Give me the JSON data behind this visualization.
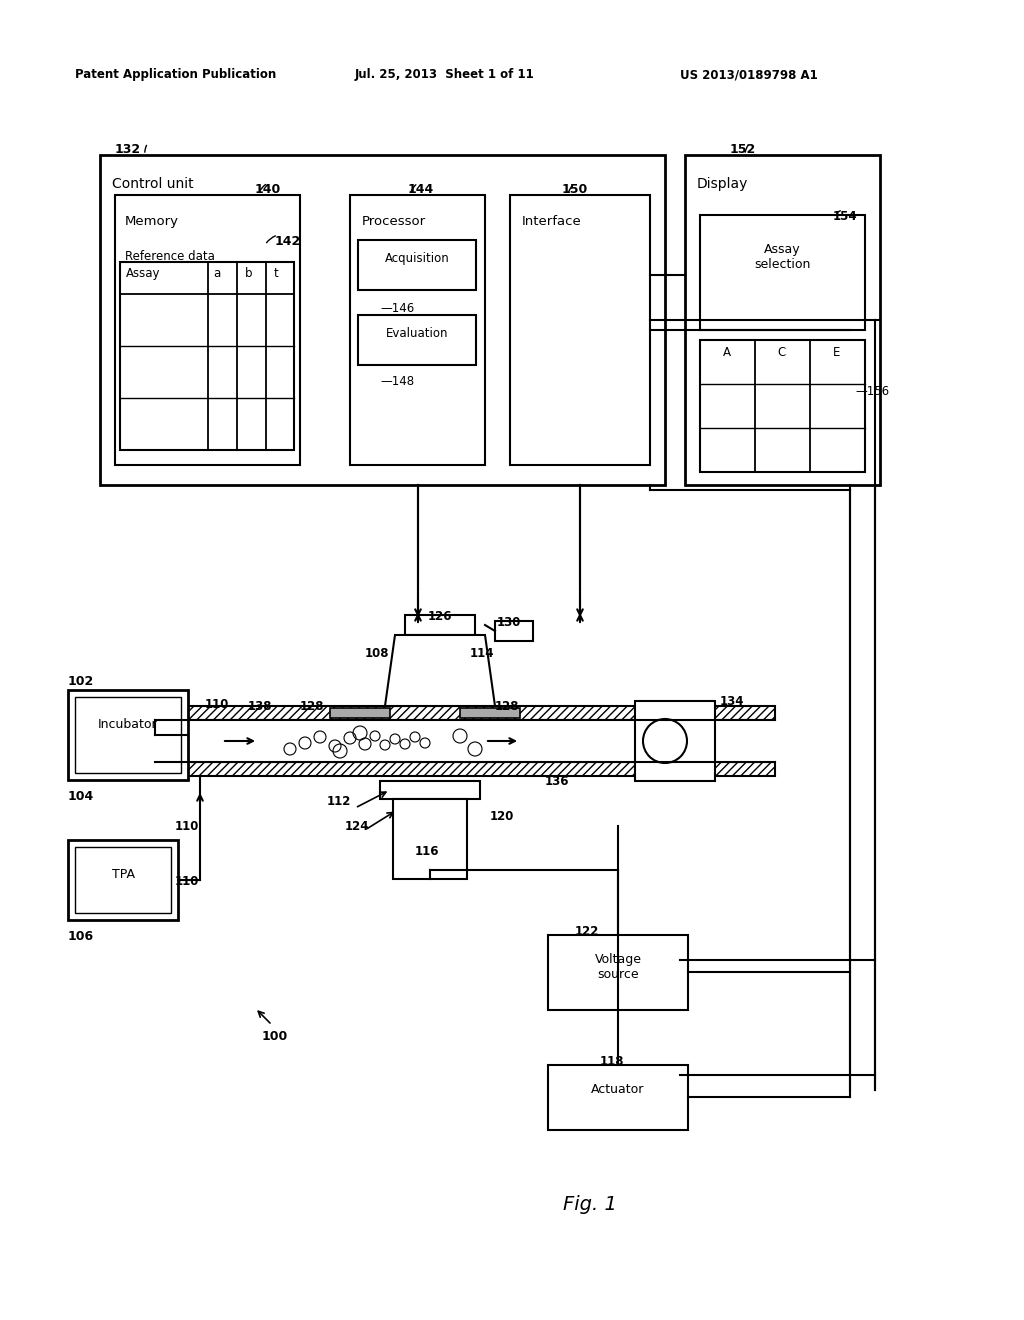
{
  "bg_color": "#ffffff",
  "line_color": "#000000",
  "header_left": "Patent Application Publication",
  "header_mid": "Jul. 25, 2013  Sheet 1 of 11",
  "header_right": "US 2013/0189798 A1",
  "fig_label": "Fig. 1"
}
